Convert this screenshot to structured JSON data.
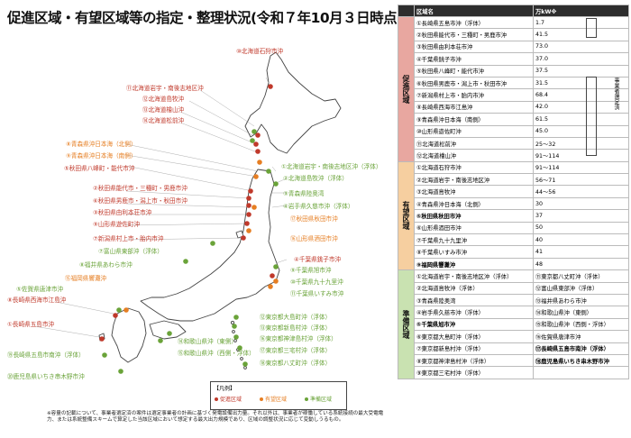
{
  "title": "促進区域・有望区域等の指定・整理状況(令和７年10月３日時点)",
  "legend": {
    "heading": "【凡例】",
    "items": [
      {
        "label": "促進区域",
        "color": "#c0392b"
      },
      {
        "label": "有望区域",
        "color": "#e67e22"
      },
      {
        "label": "準備区域",
        "color": "#6aa339"
      }
    ]
  },
  "map_labels": {
    "p": [
      "⑩北海道石狩市沖",
      "⑪北海道岩宇・南後志地区沖",
      "⑫北海道島牧沖",
      "⑬北海道檜山沖",
      "⑭北海道松前沖",
      "②秋田県能代市・三種町・男鹿市沖",
      "⑥秋田県男鹿市・潟上市・秋田市沖",
      "③秋田県由利本荘市沖",
      "⑨山形県遊佐町沖",
      "⑦新潟県村上市・胎内市沖",
      "⑤秋田県八峰町・能代市沖",
      "⑧長崎県西海市江島沖",
      "①長崎県五島市沖",
      "④千葉県銚子市沖"
    ],
    "o": [
      "⑧青森県沖日本海（北側）",
      "⑨青森県沖日本海（南側）",
      "⑯山形県酒田市沖",
      "⑰秋田県秋田市沖",
      "⑮福岡県響灘沖"
    ],
    "g": [
      "①北海道岩宇・南後志地区沖（浮体）",
      "②北海道島牧沖（浮体）",
      "③青森県陸奥湾",
      "④岩手県久慈市沖（浮体）",
      "⑦富山県東部沖（浮体）",
      "⑧福井県あわら市沖",
      "⑨千葉県旭市沖",
      "⑩千葉県九十九里沖",
      "⑪千葉県いすみ市沖",
      "⑤佐賀県唐津市沖",
      "⑫東京都大島町沖（浮体）",
      "⑬東京都新島村沖（浮体）",
      "⑭和歌山県沖（東側）",
      "⑮和歌山県沖（西側・浮体）",
      "⑯東京都神津島村沖（浮体）",
      "⑰東京都三宅村沖（浮体）",
      "⑱東京都八丈町沖（浮体）",
      "⑲長崎県五島市南沖（浮体）",
      "⑳鹿児島県いちき串木野市沖"
    ]
  },
  "note": "※容量の記載について、事業者選定済の案件は選定事業者の計画に基づく発電設備出力量。それ以外は、事業者が稼働している系統接続の最大受電電力、または系統整備スキームで算定した当該区域において想定する最大出力規模であり、区域の調整状況に応じて変動しうるもの。",
  "table": {
    "headers": [
      "区域名",
      "万kW※"
    ],
    "categories": [
      "促進区域",
      "有望区域",
      "準備区域"
    ],
    "selected_note": "事業者選定済",
    "promotion": [
      {
        "name": "①長崎県五島市沖（浮体）",
        "kw": "1.7"
      },
      {
        "name": "②秋田県能代市・三種町・男鹿市沖",
        "kw": "41.5"
      },
      {
        "name": "③秋田県由利本荘市沖",
        "kw": "73.0"
      },
      {
        "name": "④千葉県銚子市沖",
        "kw": "37.0"
      },
      {
        "name": "⑤秋田県八峰町・能代市沖",
        "kw": "37.5"
      },
      {
        "name": "⑥秋田県男鹿市・潟上市・秋田市沖",
        "kw": "31.5"
      },
      {
        "name": "⑦新潟県村上市・胎内市沖",
        "kw": "68.4"
      },
      {
        "name": "⑧長崎県西海市江島沖",
        "kw": "42.0"
      },
      {
        "name": "⑨青森県沖日本海（南側）",
        "kw": "61.5"
      },
      {
        "name": "⑩山形県遊佐町沖",
        "kw": "45.0"
      },
      {
        "name": "⑪北海道松前沖",
        "kw": "25～32"
      },
      {
        "name": "⑫北海道檜山沖",
        "kw": "91～114"
      }
    ],
    "promising": [
      {
        "name": "①北海道石狩市沖",
        "kw": "91～114"
      },
      {
        "name": "②北海道岩宇・南後志地区沖",
        "kw": "56～71"
      },
      {
        "name": "③北海道島牧沖",
        "kw": "44～56"
      },
      {
        "name": "④青森県沖日本海（北側）",
        "kw": "30"
      },
      {
        "name": "⑤秋田県秋田市沖",
        "kw": "37"
      },
      {
        "name": "⑥山形県酒田市沖",
        "kw": "50"
      },
      {
        "name": "⑦千葉県九十九里沖",
        "kw": "40"
      },
      {
        "name": "⑧千葉県いすみ市沖",
        "kw": "41"
      },
      {
        "name": "⑨福岡県響灘沖",
        "kw": "48"
      }
    ],
    "preparation": [
      [
        "①北海道岩宇・南後志地区沖（浮体）",
        "⑪東京都八丈町沖（浮体）"
      ],
      [
        "②北海道島牧沖（浮体）",
        "⑫富山県東部沖（浮体）"
      ],
      [
        "③青森県陸奥湾",
        "⑬福井県あわら市沖"
      ],
      [
        "④岩手県久慈市沖（浮体）",
        "⑭和歌山県沖（東側）"
      ],
      [
        "⑤千葉県旭市沖",
        "⑮和歌山県沖（西側・浮体）"
      ],
      [
        "⑥東京都大島町沖（浮体）",
        "⑯佐賀県唐津市沖"
      ],
      [
        "⑦東京都新島村沖（浮体）",
        "⑰長崎県五島市南沖（浮体）"
      ],
      [
        "⑧東京都神津島村沖（浮体）",
        "⑱鹿児島県いちき串木野市沖"
      ],
      [
        "⑨東京都三宅村沖（浮体）",
        ""
      ]
    ]
  }
}
